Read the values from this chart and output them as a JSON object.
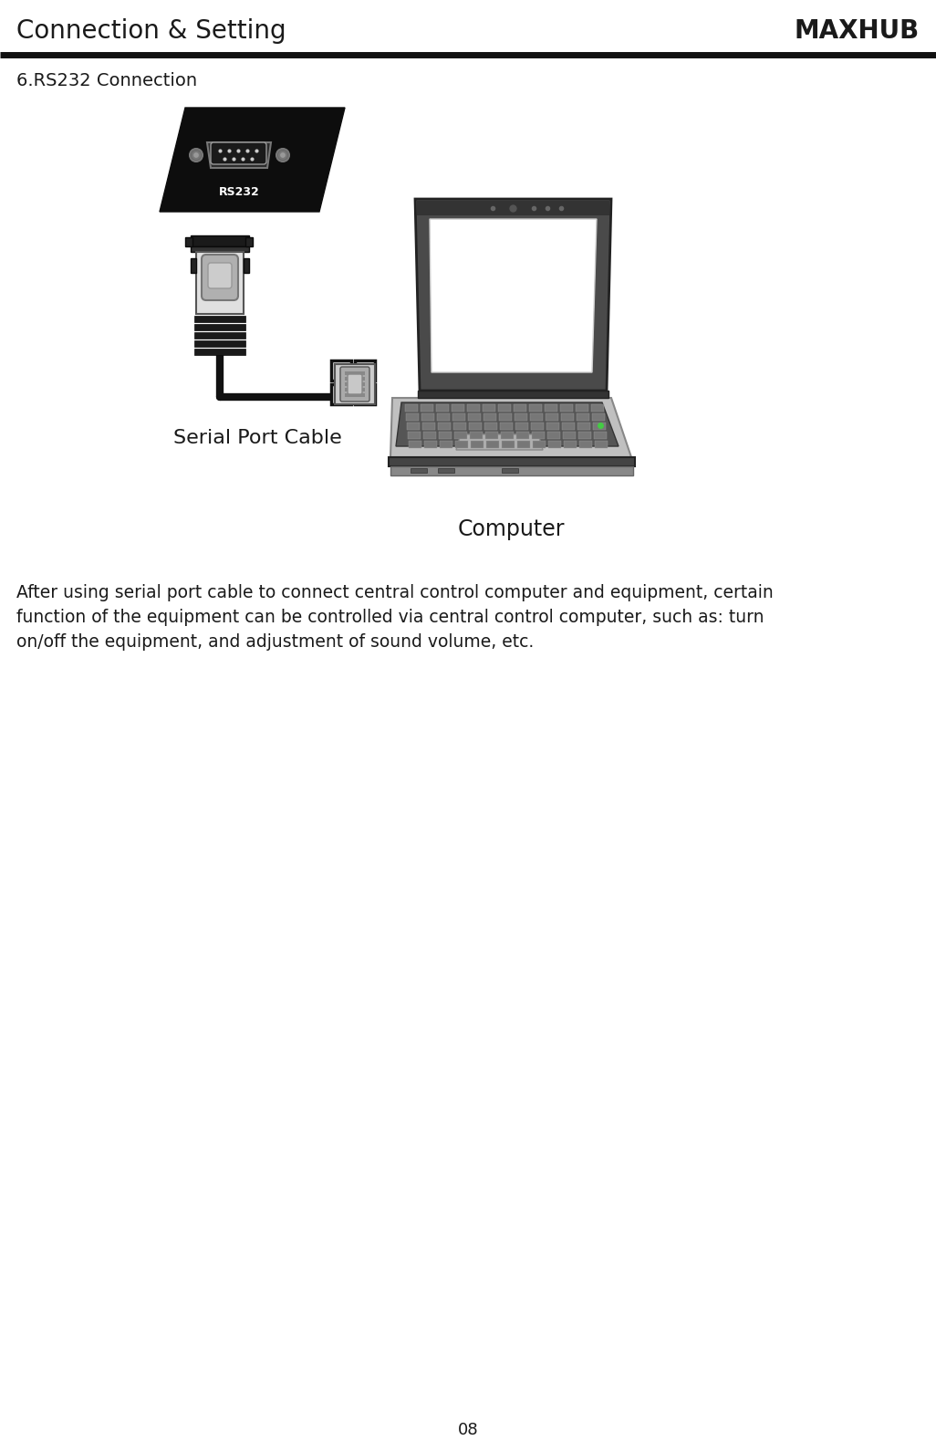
{
  "header_left": "Connection & Setting",
  "header_right": "MAXHUB",
  "divider_color": "#111111",
  "section_title": "6.RS232 Connection",
  "label_serial": "Serial Port Cable",
  "label_computer": "Computer",
  "rs232_label": "RS232",
  "description_line1": "After using serial port cable to connect central control computer and equipment, certain",
  "description_line2": "function of the equipment can be controlled via central control computer, such as: turn",
  "description_line3": "on/off the equipment, and adjustment of sound volume, etc.",
  "page_number": "08",
  "bg_color": "#ffffff",
  "text_color": "#1a1a1a",
  "dark": "#111111",
  "mid_gray": "#888888",
  "light_gray": "#cccccc",
  "silver": "#aaaaaa"
}
